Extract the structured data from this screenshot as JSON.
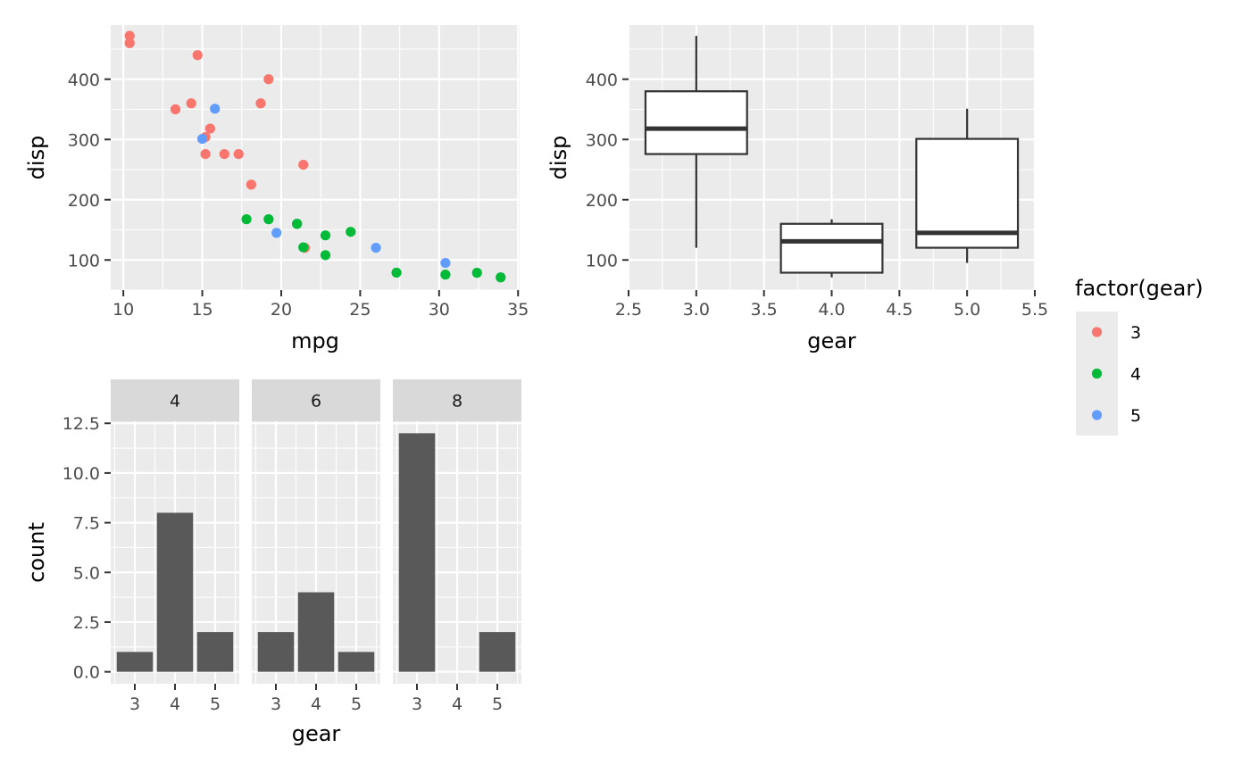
{
  "chart_data": [
    {
      "id": "scatter",
      "type": "scatter",
      "xlabel": "mpg",
      "ylabel": "disp",
      "xlim": [
        9.2,
        35.1
      ],
      "ylim": [
        50,
        490
      ],
      "xticks": [
        10,
        15,
        20,
        25,
        30,
        35
      ],
      "yticks": [
        100,
        200,
        300,
        400
      ],
      "grid": true,
      "color_by": "factor(gear)",
      "series": [
        {
          "name": "3",
          "color": "#F8766D",
          "points": [
            [
              21.4,
              258
            ],
            [
              18.7,
              360
            ],
            [
              18.1,
              225
            ],
            [
              14.3,
              360
            ],
            [
              16.4,
              275.8
            ],
            [
              17.3,
              275.8
            ],
            [
              15.2,
              275.8
            ],
            [
              10.4,
              472
            ],
            [
              10.4,
              460
            ],
            [
              14.7,
              440
            ],
            [
              21.5,
              120.1
            ],
            [
              15.5,
              318
            ],
            [
              15.2,
              304
            ],
            [
              13.3,
              350
            ],
            [
              19.2,
              400
            ]
          ]
        },
        {
          "name": "4",
          "color": "#00BA38",
          "points": [
            [
              21.0,
              160
            ],
            [
              21.0,
              160
            ],
            [
              22.8,
              108
            ],
            [
              24.4,
              146.7
            ],
            [
              22.8,
              140.8
            ],
            [
              19.2,
              167.6
            ],
            [
              17.8,
              167.6
            ],
            [
              32.4,
              78.7
            ],
            [
              30.4,
              75.7
            ],
            [
              33.9,
              71.1
            ],
            [
              27.3,
              79
            ],
            [
              21.4,
              121
            ]
          ]
        },
        {
          "name": "5",
          "color": "#619CFF",
          "points": [
            [
              26.0,
              120.3
            ],
            [
              30.4,
              95.1
            ],
            [
              15.8,
              351
            ],
            [
              19.7,
              145
            ],
            [
              15.0,
              301
            ]
          ]
        }
      ]
    },
    {
      "id": "boxplot",
      "type": "box",
      "xlabel": "gear",
      "ylabel": "disp",
      "xlim": [
        2.5,
        5.5
      ],
      "ylim": [
        50,
        490
      ],
      "xticks": [
        "2.5",
        "3.0",
        "3.5",
        "4.0",
        "4.5",
        "5.0",
        "5.5"
      ],
      "yticks": [
        100,
        200,
        300,
        400
      ],
      "grid": true,
      "boxes": [
        {
          "x": 3,
          "min": 120.1,
          "q1": 275.8,
          "median": 318,
          "q3": 380,
          "max": 472
        },
        {
          "x": 4,
          "min": 71.1,
          "q1": 78.9,
          "median": 130.9,
          "q3": 160,
          "max": 167.6
        },
        {
          "x": 5,
          "min": 95.1,
          "q1": 120.3,
          "median": 145,
          "q3": 301,
          "max": 351
        }
      ]
    },
    {
      "id": "facet-bar",
      "type": "bar",
      "xlabel": "gear",
      "ylabel": "count",
      "ylim": [
        -0.6,
        12.6
      ],
      "yticks": [
        "0.0",
        "2.5",
        "5.0",
        "7.5",
        "10.0",
        "12.5"
      ],
      "categories": [
        "3",
        "4",
        "5"
      ],
      "grid": true,
      "bar_color": "#595959",
      "facets": [
        {
          "label": "4",
          "values": [
            1,
            8,
            2
          ]
        },
        {
          "label": "6",
          "values": [
            2,
            4,
            1
          ]
        },
        {
          "label": "8",
          "values": [
            12,
            0,
            2
          ]
        }
      ]
    }
  ],
  "legend": {
    "title": "factor(gear)",
    "placement": "right",
    "items": [
      {
        "label": "3",
        "color": "#F8766D"
      },
      {
        "label": "4",
        "color": "#00BA38"
      },
      {
        "label": "5",
        "color": "#619CFF"
      }
    ]
  },
  "colors": {
    "panel_bg": "#EBEBEB",
    "grid_major": "#FFFFFF",
    "strip_bg": "#D9D9D9",
    "axis_tick": "#333333",
    "box_line": "#333333"
  }
}
